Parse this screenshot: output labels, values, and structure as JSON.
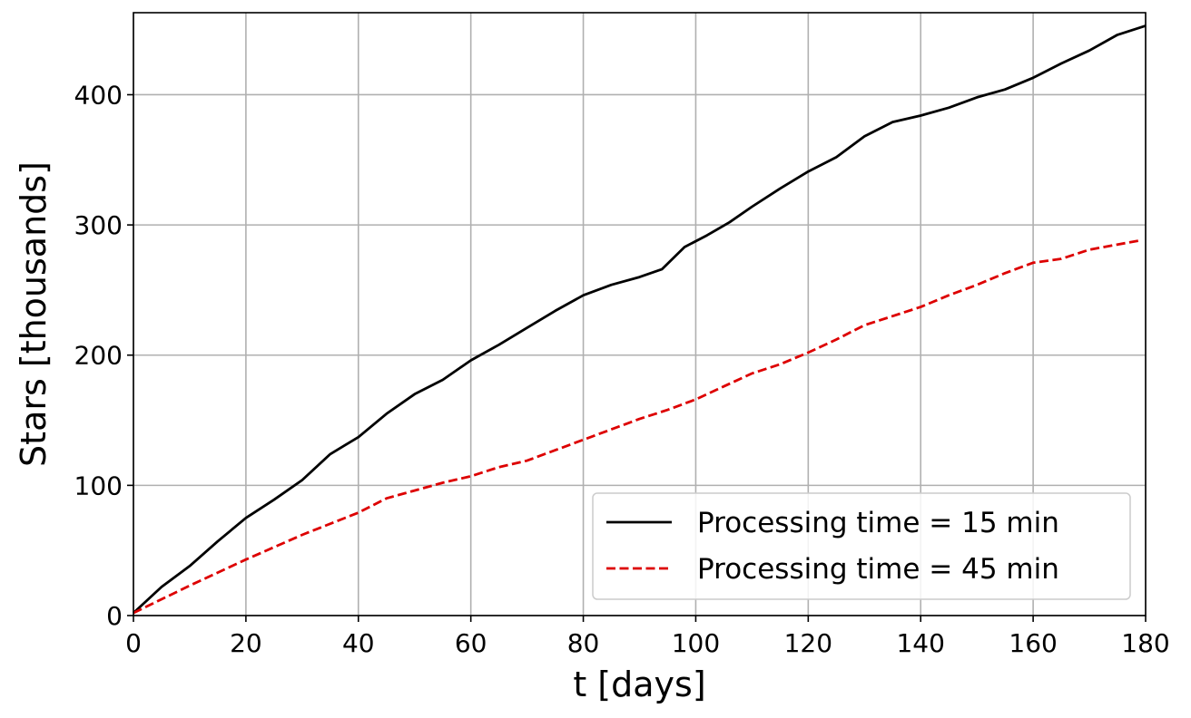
{
  "chart_data": {
    "type": "line",
    "xlabel": "t [days]",
    "ylabel": "Stars [thousands]",
    "xlim": [
      0,
      180
    ],
    "ylim": [
      0,
      463
    ],
    "xticks": [
      0,
      20,
      40,
      60,
      80,
      100,
      120,
      140,
      160,
      180
    ],
    "yticks": [
      0,
      100,
      200,
      300,
      400
    ],
    "grid": true,
    "legend_position": "lower-right",
    "series": [
      {
        "name": "Processing time = 15 min",
        "color": "#000000",
        "style": "solid",
        "x": [
          0,
          5,
          10,
          15,
          20,
          25,
          30,
          35,
          40,
          45,
          50,
          55,
          60,
          65,
          70,
          75,
          80,
          85,
          90,
          94,
          98,
          102,
          106,
          110,
          115,
          120,
          125,
          130,
          135,
          140,
          145,
          150,
          155,
          160,
          165,
          170,
          175,
          180
        ],
        "values": [
          2,
          22,
          38,
          57,
          75,
          89,
          104,
          124,
          137,
          155,
          170,
          181,
          196,
          208,
          221,
          234,
          246,
          254,
          260,
          266,
          283,
          292,
          302,
          314,
          328,
          341,
          352,
          368,
          379,
          384,
          390,
          398,
          404,
          413,
          424,
          434,
          446,
          453
        ]
      },
      {
        "name": "Processing time = 45 min",
        "color": "#dd0000",
        "style": "dashed",
        "x": [
          0,
          10,
          20,
          30,
          40,
          45,
          50,
          55,
          60,
          65,
          70,
          75,
          80,
          85,
          90,
          95,
          100,
          105,
          110,
          115,
          120,
          125,
          130,
          135,
          140,
          145,
          150,
          155,
          160,
          165,
          170,
          175,
          179
        ],
        "values": [
          2,
          23,
          43,
          62,
          79,
          90,
          96,
          102,
          107,
          114,
          119,
          127,
          135,
          143,
          151,
          158,
          166,
          176,
          186,
          193,
          202,
          212,
          223,
          230,
          237,
          246,
          254,
          263,
          271,
          274,
          281,
          285,
          288
        ]
      }
    ]
  }
}
